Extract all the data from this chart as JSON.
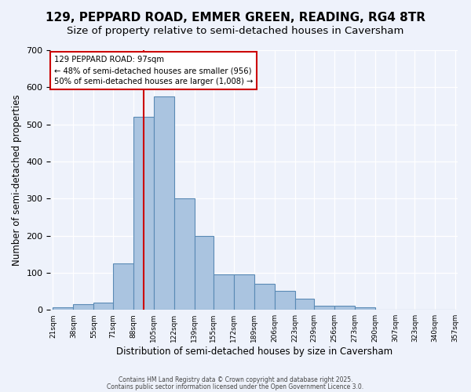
{
  "title": "129, PEPPARD ROAD, EMMER GREEN, READING, RG4 8TR",
  "subtitle": "Size of property relative to semi-detached houses in Caversham",
  "xlabel": "Distribution of semi-detached houses by size in Caversham",
  "ylabel": "Number of semi-detached properties",
  "bin_edges": [
    21,
    38,
    55,
    71,
    88,
    105,
    122,
    139,
    155,
    172,
    189,
    206,
    223,
    239,
    256,
    273,
    290,
    307,
    323,
    340,
    357
  ],
  "bar_heights": [
    7,
    15,
    20,
    125,
    520,
    575,
    300,
    200,
    95,
    95,
    70,
    52,
    30,
    12,
    10,
    6,
    0,
    0,
    0,
    0
  ],
  "bar_color": "#aac4e0",
  "bar_edge_color": "#5a8ab5",
  "property_size": 97,
  "vline_color": "#cc0000",
  "annotation_text": "129 PEPPARD ROAD: 97sqm\n← 48% of semi-detached houses are smaller (956)\n50% of semi-detached houses are larger (1,008) →",
  "annotation_box_color": "#ffffff",
  "annotation_box_edge_color": "#cc0000",
  "ylim": [
    0,
    700
  ],
  "yticks": [
    0,
    100,
    200,
    300,
    400,
    500,
    600,
    700
  ],
  "background_color": "#eef2fb",
  "footer_line1": "Contains HM Land Registry data © Crown copyright and database right 2025.",
  "footer_line2": "Contains public sector information licensed under the Open Government Licence 3.0.",
  "title_fontsize": 11,
  "subtitle_fontsize": 9.5
}
